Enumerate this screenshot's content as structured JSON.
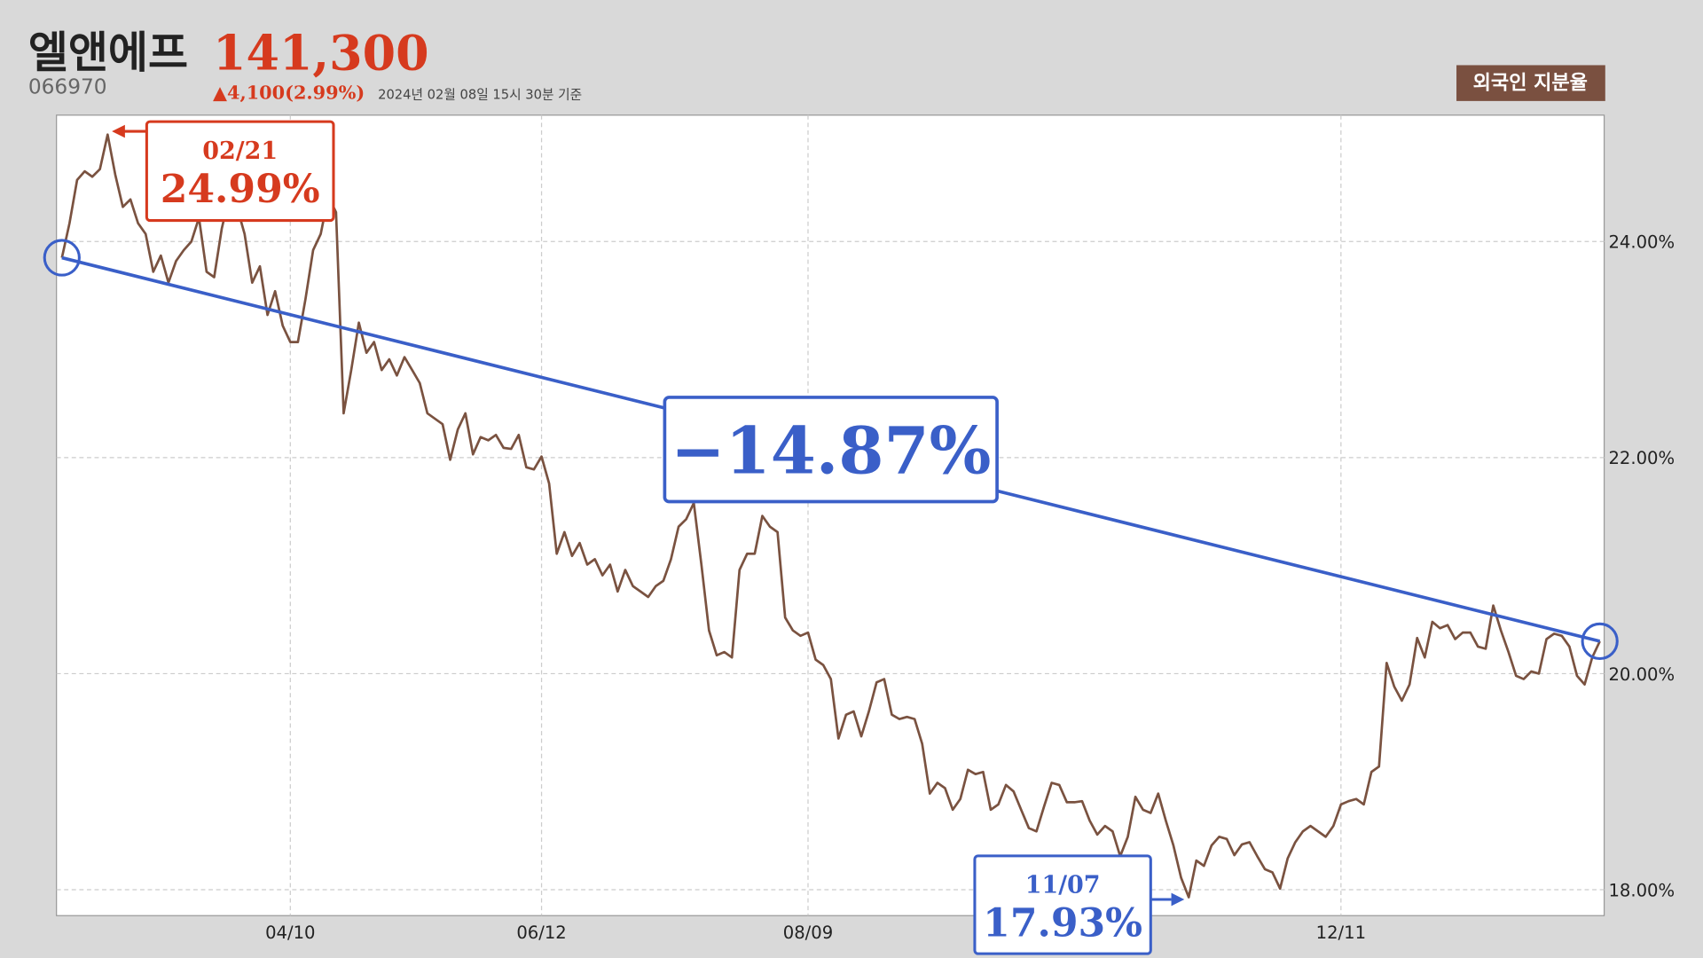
{
  "header": {
    "title": "엘앤에프",
    "price": "141,300",
    "code": "066970",
    "change": "▲4,100(2.99%)",
    "timestamp": "2024년 02월 08일 15시 30분 기준",
    "badge": "외국인 지분율"
  },
  "chart_data": {
    "type": "line",
    "categories": [
      null,
      null,
      null,
      null,
      null,
      null,
      null,
      null,
      null,
      null,
      null,
      null,
      null,
      null,
      null,
      null,
      null,
      null,
      null,
      null,
      null,
      null,
      null,
      null,
      null,
      null,
      null,
      null,
      null,
      null,
      "04/10",
      null,
      null,
      null,
      null,
      null,
      null,
      null,
      null,
      null,
      null,
      null,
      null,
      null,
      null,
      null,
      null,
      null,
      null,
      null,
      null,
      null,
      null,
      null,
      null,
      null,
      null,
      null,
      null,
      null,
      null,
      null,
      null,
      "06/12",
      null,
      null,
      null,
      null,
      null,
      null,
      null,
      null,
      null,
      null,
      null,
      null,
      null,
      null,
      null,
      null,
      null,
      null,
      null,
      null,
      null,
      null,
      null,
      null,
      null,
      null,
      null,
      null,
      null,
      null,
      null,
      null,
      null,
      null,
      "08/09",
      null,
      null,
      null,
      null,
      null,
      null,
      null,
      null,
      null,
      null,
      null,
      null,
      null,
      null,
      null,
      null,
      null,
      null,
      null,
      null,
      null,
      null,
      null,
      null,
      null,
      null,
      null,
      null,
      null,
      null,
      null,
      null,
      null,
      null,
      null,
      null,
      null,
      null,
      null,
      null,
      null,
      null,
      null,
      null,
      null,
      null,
      null,
      null,
      null,
      null,
      null,
      null,
      null,
      null,
      null,
      null,
      null,
      null,
      null,
      null,
      null,
      null,
      null,
      null,
      null,
      null,
      null,
      null,
      null,
      "12/11",
      null,
      null,
      null,
      null,
      null,
      null,
      null,
      null,
      null,
      null,
      null,
      null,
      null,
      null,
      null,
      null,
      null,
      null,
      null,
      null,
      null,
      null,
      null,
      null,
      null,
      null,
      null,
      null,
      null,
      null,
      null,
      null,
      null,
      null
    ],
    "series": [
      {
        "name": "외국인 지분율",
        "color": "#7a5240",
        "values": [
          23.85,
          24.17,
          24.57,
          24.65,
          24.6,
          24.67,
          24.99,
          24.62,
          24.32,
          24.39,
          24.17,
          24.07,
          23.72,
          23.87,
          23.62,
          23.82,
          23.92,
          24.0,
          24.22,
          23.72,
          23.67,
          24.12,
          24.42,
          24.32,
          24.07,
          23.62,
          23.77,
          23.32,
          23.54,
          23.22,
          23.07,
          23.07,
          23.47,
          23.92,
          24.07,
          24.42,
          24.27,
          22.41,
          22.81,
          23.25,
          22.97,
          23.07,
          22.81,
          22.91,
          22.76,
          22.93,
          22.81,
          22.69,
          22.41,
          22.36,
          22.31,
          21.98,
          22.26,
          22.41,
          22.03,
          22.19,
          22.16,
          22.21,
          22.09,
          22.08,
          22.21,
          21.91,
          21.89,
          22.01,
          21.76,
          21.11,
          21.31,
          21.09,
          21.21,
          21.01,
          21.06,
          20.91,
          21.01,
          20.76,
          20.96,
          20.81,
          20.76,
          20.71,
          20.81,
          20.86,
          21.06,
          21.36,
          21.43,
          21.58,
          21.01,
          20.4,
          20.17,
          20.2,
          20.15,
          20.96,
          21.11,
          21.11,
          21.46,
          21.36,
          21.31,
          20.52,
          20.4,
          20.35,
          20.38,
          20.13,
          20.08,
          19.95,
          19.4,
          19.62,
          19.65,
          19.42,
          19.65,
          19.92,
          19.95,
          19.62,
          19.58,
          19.6,
          19.58,
          19.35,
          18.89,
          18.99,
          18.94,
          18.74,
          18.84,
          19.11,
          19.07,
          19.09,
          18.74,
          18.79,
          18.97,
          18.91,
          18.74,
          18.57,
          18.54,
          18.77,
          18.99,
          18.97,
          18.81,
          18.81,
          18.82,
          18.64,
          18.51,
          18.59,
          18.54,
          18.31,
          18.49,
          18.86,
          18.74,
          18.71,
          18.89,
          18.64,
          18.41,
          18.11,
          17.93,
          18.27,
          18.22,
          18.41,
          18.49,
          18.47,
          18.32,
          18.42,
          18.44,
          18.31,
          18.19,
          18.16,
          18.01,
          18.29,
          18.44,
          18.54,
          18.59,
          18.54,
          18.49,
          18.59,
          18.79,
          18.82,
          18.84,
          18.79,
          19.09,
          19.14,
          20.1,
          19.88,
          19.75,
          19.9,
          20.33,
          20.15,
          20.48,
          20.42,
          20.45,
          20.32,
          20.38,
          20.38,
          20.25,
          20.23,
          20.63,
          20.4,
          20.2,
          19.98,
          19.95,
          20.02,
          20.0,
          20.32,
          20.37,
          20.35,
          20.25,
          19.98,
          19.9,
          20.15,
          20.3
        ]
      }
    ],
    "ylim": [
      17.76,
      25.17
    ],
    "yticks": [
      {
        "value": 18,
        "label": "18.00%"
      },
      {
        "value": 20,
        "label": "20.00%"
      },
      {
        "value": 22,
        "label": "22.00%"
      },
      {
        "value": 24,
        "label": "24.00%"
      }
    ],
    "grid": true,
    "trend": {
      "color": "#3a5fc8",
      "label": "−14.87%"
    },
    "annotations": [
      {
        "date": "02/21",
        "label": "24.99%",
        "color": "#d63a1e"
      },
      {
        "date": "11/07",
        "label": "17.93%",
        "color": "#3a5fc8"
      }
    ]
  }
}
